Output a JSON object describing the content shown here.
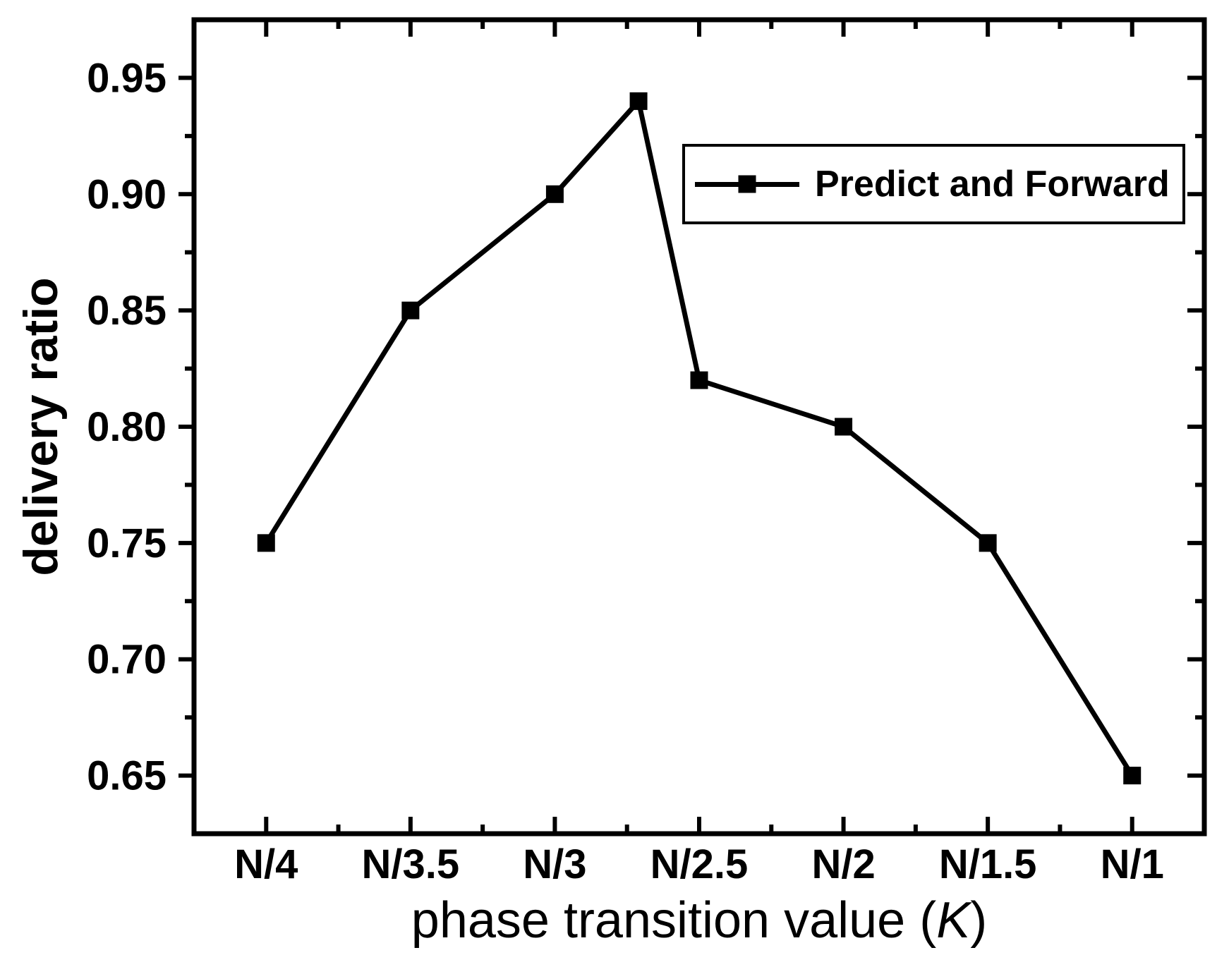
{
  "chart_data": {
    "type": "line",
    "title": "",
    "xlabel": "phase transition value (K)",
    "xlabel_parts": {
      "pre": "phase transition value (",
      "italic": "K",
      "post": ")"
    },
    "ylabel": "delivery ratio",
    "grid": false,
    "colors": {
      "foreground": "#000000",
      "background": "#ffffff"
    },
    "legend": {
      "position": "upper-right-inside",
      "entries": [
        {
          "label": "Predict and Forward",
          "marker": "filled-square",
          "line": true,
          "color": "#000000"
        }
      ]
    },
    "x_axis": {
      "range": [
        0.5,
        7.5
      ],
      "tick_positions": [
        1,
        2,
        3,
        4,
        5,
        6,
        7
      ],
      "tick_labels": [
        "N/4",
        "N/3.5",
        "N/3",
        "N/2.5",
        "N/2",
        "N/1.5",
        "N/1"
      ],
      "minor_tick_positions": [
        1.5,
        2.5,
        3.5,
        4.5,
        5.5,
        6.5
      ]
    },
    "y_axis": {
      "range": [
        0.625,
        0.975
      ],
      "tick_values": [
        0.95,
        0.9,
        0.85,
        0.8,
        0.75,
        0.7,
        0.65
      ],
      "tick_labels": [
        "0.95",
        "0.90",
        "0.85",
        "0.80",
        "0.75",
        "0.70",
        "0.65"
      ],
      "minor_tick_values": [
        0.675,
        0.725,
        0.775,
        0.825,
        0.875,
        0.925
      ]
    },
    "series": [
      {
        "name": "Predict and Forward",
        "color": "#000000",
        "marker": "filled-square",
        "points": [
          {
            "x": 1,
            "x_label": "N/4",
            "y": 0.75
          },
          {
            "x": 2,
            "x_label": "N/3.5",
            "y": 0.85
          },
          {
            "x": 3,
            "x_label": "N/3",
            "y": 0.9
          },
          {
            "x": 3.58,
            "x_label": "~N/2.7",
            "y": 0.94
          },
          {
            "x": 4,
            "x_label": "N/2.5",
            "y": 0.82
          },
          {
            "x": 5,
            "x_label": "N/2",
            "y": 0.8
          },
          {
            "x": 6,
            "x_label": "N/1.5",
            "y": 0.75
          },
          {
            "x": 7,
            "x_label": "N/1",
            "y": 0.65
          }
        ]
      }
    ]
  }
}
